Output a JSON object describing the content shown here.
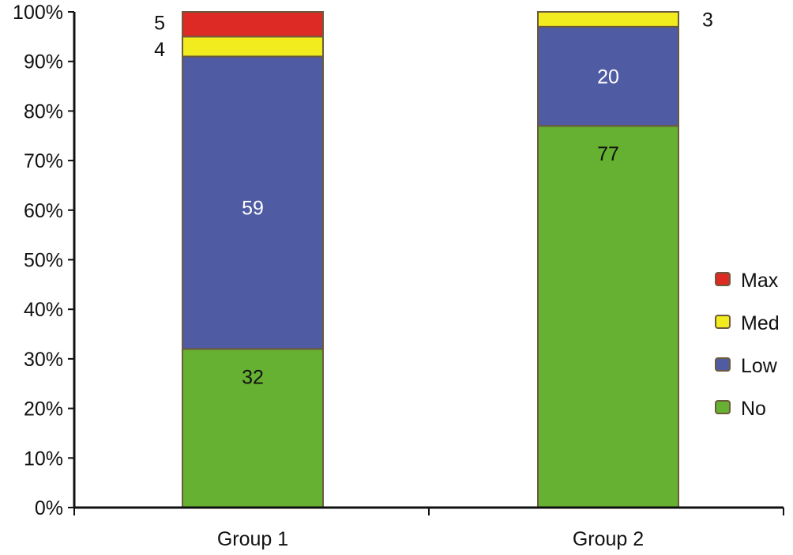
{
  "chart_data": {
    "type": "bar",
    "stacked": true,
    "percent_stacked": true,
    "categories": [
      "Group 1",
      "Group 2"
    ],
    "series": [
      {
        "name": "No",
        "values": [
          32,
          77
        ],
        "color": "#66b132"
      },
      {
        "name": "Low",
        "values": [
          59,
          20
        ],
        "color": "#4f5ba3"
      },
      {
        "name": "Med",
        "values": [
          4,
          3
        ],
        "color": "#f2ec1f"
      },
      {
        "name": "Max",
        "values": [
          5,
          0
        ],
        "color": "#dd2a25"
      }
    ],
    "data_labels": [
      {
        "category": 0,
        "series": "No",
        "text": "32",
        "placement": "inside",
        "color": "#111111"
      },
      {
        "category": 0,
        "series": "Low",
        "text": "59",
        "placement": "inside",
        "color": "#ffffff"
      },
      {
        "category": 0,
        "series": "Med",
        "text": "4",
        "placement": "left",
        "color": "#111111"
      },
      {
        "category": 0,
        "series": "Max",
        "text": "5",
        "placement": "left",
        "color": "#111111"
      },
      {
        "category": 1,
        "series": "No",
        "text": "77",
        "placement": "inside",
        "color": "#111111"
      },
      {
        "category": 1,
        "series": "Low",
        "text": "20",
        "placement": "inside",
        "color": "#ffffff"
      },
      {
        "category": 1,
        "series": "Med",
        "text": "3",
        "placement": "right",
        "color": "#111111"
      }
    ],
    "y_ticks": [
      "0%",
      "10%",
      "20%",
      "30%",
      "40%",
      "50%",
      "60%",
      "70%",
      "80%",
      "90%",
      "100%"
    ],
    "ylim": [
      0,
      100
    ],
    "legend": {
      "placement": "right",
      "order": [
        "Max",
        "Med",
        "Low",
        "No"
      ]
    },
    "grid": false,
    "title": "",
    "xlabel": "",
    "ylabel": ""
  }
}
